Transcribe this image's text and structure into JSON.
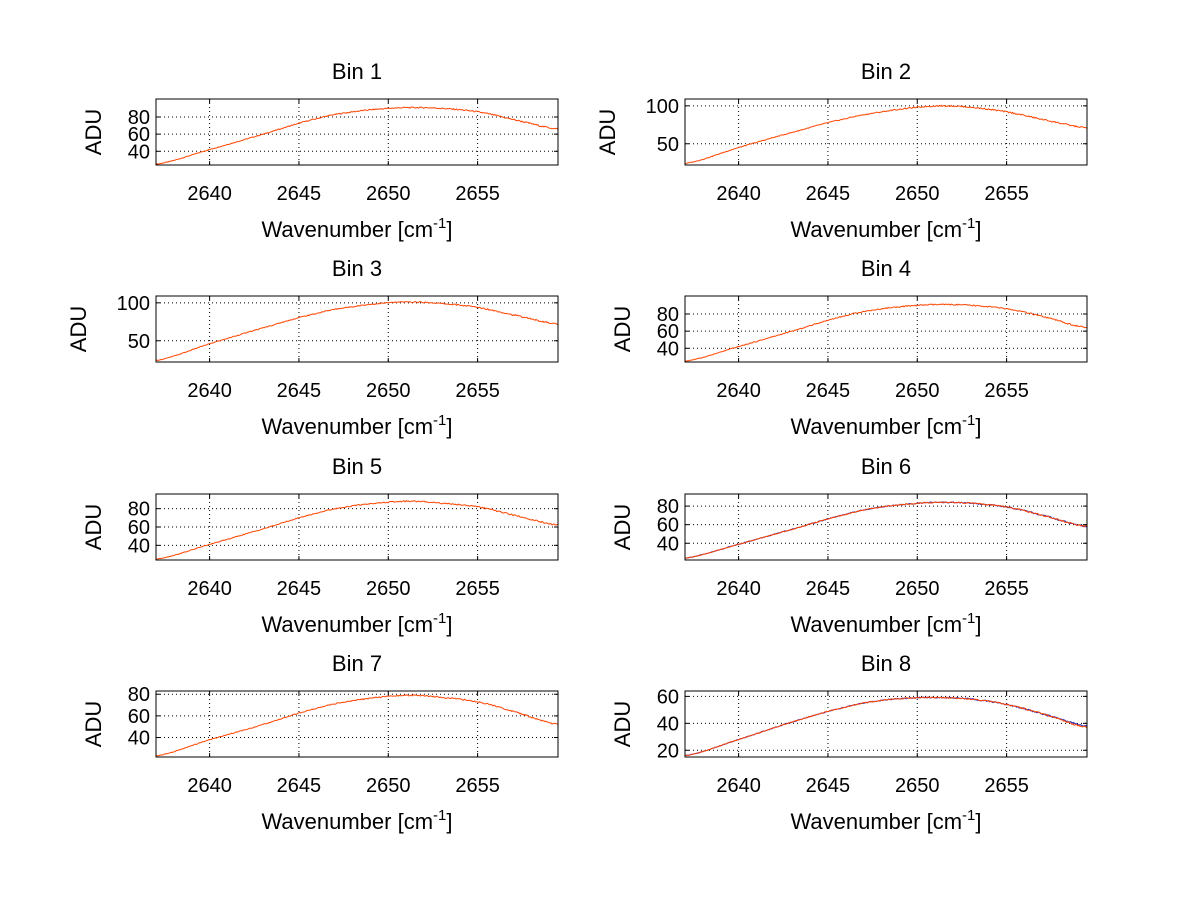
{
  "colors": {
    "series_orange": "#ff4500",
    "series_blue": "#2020c0",
    "grid": "#000000",
    "axis": "#000000"
  },
  "chart_data": [
    {
      "type": "line",
      "title": "Bin 1",
      "xlabel_main": "Wavenumber [cm",
      "xlabel_sup": "-1",
      "xlabel_close": "]",
      "ylabel": "ADU",
      "xlim": [
        2637,
        2659.5
      ],
      "ylim": [
        24,
        101
      ],
      "xticks": [
        2640,
        2645,
        2650,
        2655
      ],
      "yticks": [
        40,
        60,
        80
      ],
      "x": [
        2637,
        2640,
        2643,
        2646,
        2648,
        2650,
        2651.5,
        2653,
        2655,
        2657,
        2659.5
      ],
      "series": [
        {
          "name": "orange",
          "values": [
            25,
            42,
            60,
            78,
            86,
            90,
            91,
            90,
            86,
            77,
            66
          ]
        }
      ]
    },
    {
      "type": "line",
      "title": "Bin 2",
      "xlabel_main": "Wavenumber [cm",
      "xlabel_sup": "-1",
      "xlabel_close": "]",
      "ylabel": "ADU",
      "xlim": [
        2637,
        2659.5
      ],
      "ylim": [
        22,
        109
      ],
      "xticks": [
        2640,
        2645,
        2650,
        2655
      ],
      "yticks": [
        50,
        100
      ],
      "x": [
        2637,
        2640,
        2643,
        2646,
        2648,
        2650,
        2651.5,
        2653,
        2655,
        2657,
        2659.5
      ],
      "series": [
        {
          "name": "orange",
          "values": [
            24,
            45,
            65,
            83,
            92,
            98,
            100,
            98,
            92,
            82,
            71
          ]
        }
      ]
    },
    {
      "type": "line",
      "title": "Bin 3",
      "xlabel_main": "Wavenumber [cm",
      "xlabel_sup": "-1",
      "xlabel_close": "]",
      "ylabel": "ADU",
      "xlim": [
        2637,
        2659.5
      ],
      "ylim": [
        22,
        109
      ],
      "xticks": [
        2640,
        2645,
        2650,
        2655
      ],
      "yticks": [
        50,
        100
      ],
      "x": [
        2637,
        2640,
        2643,
        2646,
        2648,
        2650,
        2651.5,
        2653,
        2655,
        2657,
        2659.5
      ],
      "series": [
        {
          "name": "orange",
          "values": [
            24,
            46,
            67,
            86,
            95,
            100,
            101,
            99,
            94,
            84,
            72
          ]
        }
      ]
    },
    {
      "type": "line",
      "title": "Bin 4",
      "xlabel_main": "Wavenumber [cm",
      "xlabel_sup": "-1",
      "xlabel_close": "]",
      "ylabel": "ADU",
      "xlim": [
        2637,
        2659.5
      ],
      "ylim": [
        24,
        101
      ],
      "xticks": [
        2640,
        2645,
        2650,
        2655
      ],
      "yticks": [
        40,
        60,
        80
      ],
      "x": [
        2637,
        2640,
        2643,
        2646,
        2648,
        2650,
        2651.5,
        2653,
        2655,
        2657,
        2659.5
      ],
      "series": [
        {
          "name": "orange",
          "values": [
            25,
            42,
            60,
            78,
            86,
            90,
            91,
            90,
            86,
            77,
            64
          ]
        }
      ]
    },
    {
      "type": "line",
      "title": "Bin 5",
      "xlabel_main": "Wavenumber [cm",
      "xlabel_sup": "-1",
      "xlabel_close": "]",
      "ylabel": "ADU",
      "xlim": [
        2637,
        2659.5
      ],
      "ylim": [
        24,
        96
      ],
      "xticks": [
        2640,
        2645,
        2650,
        2655
      ],
      "yticks": [
        40,
        60,
        80
      ],
      "x": [
        2637,
        2640,
        2643,
        2646,
        2648,
        2650,
        2651.5,
        2653,
        2655,
        2657,
        2659.5
      ],
      "series": [
        {
          "name": "orange",
          "values": [
            25,
            41,
            58,
            75,
            83,
            87,
            88,
            86,
            82,
            73,
            62
          ]
        }
      ]
    },
    {
      "type": "line",
      "title": "Bin 6",
      "xlabel_main": "Wavenumber [cm",
      "xlabel_sup": "-1",
      "xlabel_close": "]",
      "ylabel": "ADU",
      "xlim": [
        2637,
        2659.5
      ],
      "ylim": [
        22,
        93
      ],
      "xticks": [
        2640,
        2645,
        2650,
        2655
      ],
      "yticks": [
        40,
        60,
        80
      ],
      "x": [
        2637,
        2640,
        2643,
        2646,
        2648,
        2650,
        2651.5,
        2653,
        2655,
        2657,
        2659.5
      ],
      "series": [
        {
          "name": "blue",
          "values": [
            24,
            39,
            55,
            71,
            79,
            83,
            84,
            83,
            79,
            70,
            58
          ]
        },
        {
          "name": "orange",
          "values": [
            24,
            39,
            55,
            71,
            79,
            83,
            84,
            83,
            79,
            70,
            58
          ]
        }
      ]
    },
    {
      "type": "line",
      "title": "Bin 7",
      "xlabel_main": "Wavenumber [cm",
      "xlabel_sup": "-1",
      "xlabel_close": "]",
      "ylabel": "ADU",
      "xlim": [
        2637,
        2659.5
      ],
      "ylim": [
        22,
        83
      ],
      "xticks": [
        2640,
        2645,
        2650,
        2655
      ],
      "yticks": [
        40,
        60,
        80
      ],
      "x": [
        2637,
        2640,
        2643,
        2646,
        2648,
        2650,
        2651.5,
        2653,
        2655,
        2657,
        2659.5
      ],
      "series": [
        {
          "name": "orange",
          "values": [
            23,
            38,
            52,
            67,
            74,
            78,
            79,
            77,
            73,
            64,
            52
          ]
        }
      ]
    },
    {
      "type": "line",
      "title": "Bin 8",
      "xlabel_main": "Wavenumber [cm",
      "xlabel_sup": "-1",
      "xlabel_close": "]",
      "ylabel": "ADU",
      "xlim": [
        2637,
        2659.5
      ],
      "ylim": [
        15,
        64
      ],
      "xticks": [
        2640,
        2645,
        2650,
        2655
      ],
      "yticks": [
        20,
        40,
        60
      ],
      "x": [
        2637,
        2640,
        2643,
        2646,
        2648,
        2650,
        2651.5,
        2653,
        2655,
        2657,
        2659.5
      ],
      "series": [
        {
          "name": "blue",
          "values": [
            16,
            28,
            41,
            52,
            57,
            59,
            59,
            58,
            54,
            47,
            38
          ]
        },
        {
          "name": "orange",
          "values": [
            16,
            28,
            41,
            52,
            57,
            59,
            59,
            58,
            54,
            47,
            37
          ]
        }
      ]
    }
  ]
}
